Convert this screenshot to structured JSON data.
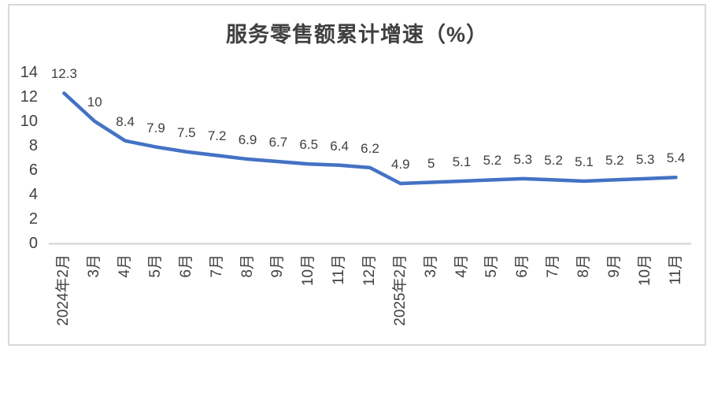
{
  "chart_data": {
    "type": "line",
    "title": "服务零售额累计增速（%）",
    "categories": [
      "2024年2月",
      "3月",
      "4月",
      "5月",
      "6月",
      "7月",
      "8月",
      "9月",
      "10月",
      "11月",
      "12月",
      "2025年2月",
      "3月",
      "4月",
      "5月",
      "6月",
      "7月",
      "8月",
      "9月",
      "10月",
      "11月"
    ],
    "values": [
      12.3,
      10,
      8.4,
      7.9,
      7.5,
      7.2,
      6.9,
      6.7,
      6.5,
      6.4,
      6.2,
      4.9,
      5,
      5.1,
      5.2,
      5.3,
      5.2,
      5.1,
      5.2,
      5.3,
      5.4
    ],
    "data_labels": [
      "12.3",
      "10",
      "8.4",
      "7.9",
      "7.5",
      "7.2",
      "6.9",
      "6.7",
      "6.5",
      "6.4",
      "6.2",
      "4.9",
      "5",
      "5.1",
      "5.2",
      "5.3",
      "5.2",
      "5.1",
      "5.2",
      "5.3",
      "5.4"
    ],
    "y_ticks": [
      0,
      2,
      4,
      6,
      8,
      10,
      12,
      14
    ],
    "ylim": [
      0,
      14
    ],
    "xlabel": "",
    "ylabel": "",
    "grid": false,
    "legend": "none",
    "series_name": "服务零售额累计增速",
    "line_color": "#4472C4",
    "label_color": "#404040",
    "axis_text_color": "#404040",
    "baseline_color": "#D9D9D9",
    "frame_border_color": "#D9D9D9"
  }
}
